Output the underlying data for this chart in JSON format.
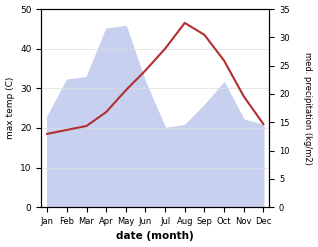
{
  "months": [
    "Jan",
    "Feb",
    "Mar",
    "Apr",
    "May",
    "Jun",
    "Jul",
    "Aug",
    "Sep",
    "Oct",
    "Nov",
    "Dec"
  ],
  "max_temp": [
    18.5,
    19.5,
    20.5,
    24.0,
    29.5,
    34.5,
    40.0,
    46.5,
    43.5,
    37.0,
    28.0,
    21.0
  ],
  "precipitation": [
    16.0,
    22.5,
    23.0,
    31.5,
    32.0,
    22.0,
    14.0,
    14.5,
    18.0,
    22.0,
    15.5,
    14.5
  ],
  "temp_color": "#b03030",
  "precip_fill_color": "#c8d0f0",
  "temp_ylim": [
    0,
    50
  ],
  "precip_ylim": [
    0,
    35
  ],
  "temp_yticks": [
    0,
    10,
    20,
    30,
    40,
    50
  ],
  "precip_yticks": [
    0,
    5,
    10,
    15,
    20,
    25,
    30,
    35
  ],
  "xlabel": "date (month)",
  "ylabel_left": "max temp (C)",
  "ylabel_right": "med. precipitation (kg/m2)",
  "background_color": "#ffffff",
  "grid_color": "#dddddd"
}
